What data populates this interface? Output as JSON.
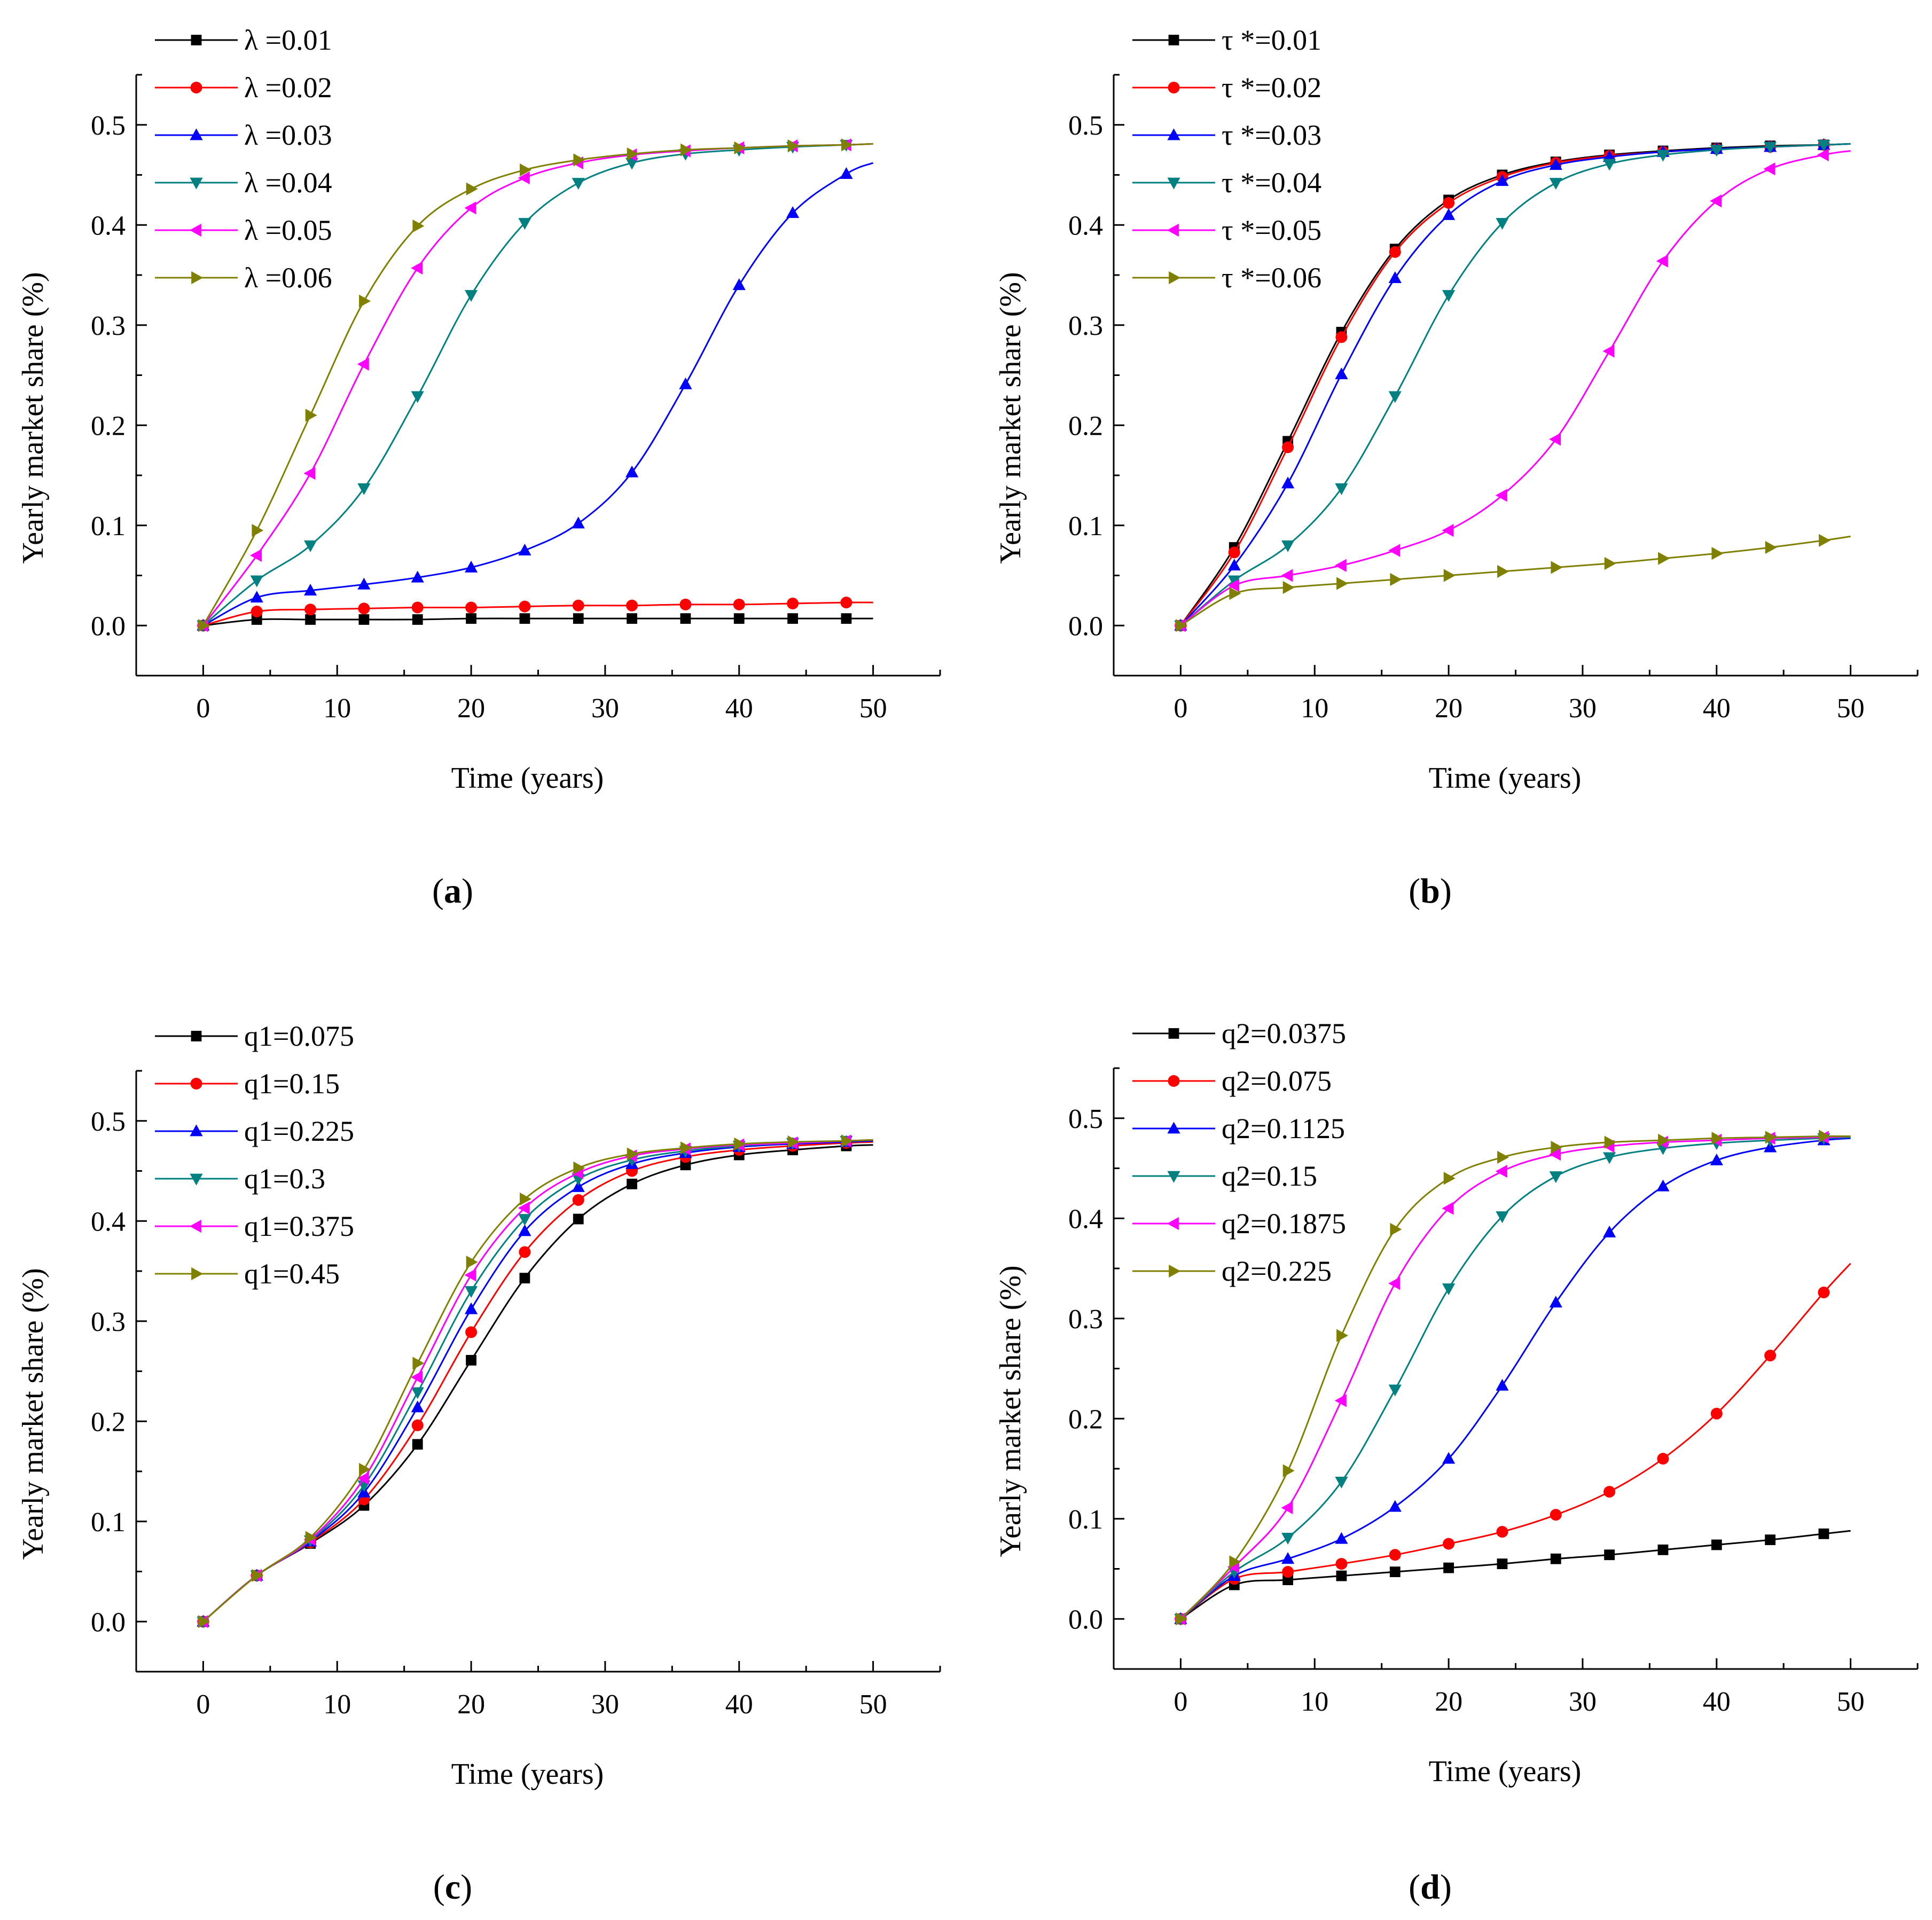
{
  "chart_data": [
    {
      "type": "line",
      "panel_label": "(a)",
      "xlabel": "Time (years)",
      "ylabel": "Yearly market share (%)",
      "xlim": [
        -5,
        55
      ],
      "ylim": [
        -0.05,
        0.55
      ],
      "xticks": [
        0,
        10,
        20,
        30,
        40,
        50
      ],
      "yticks": [
        0.0,
        0.1,
        0.2,
        0.3,
        0.4,
        0.5
      ],
      "xtick_labels": [
        "0",
        "10",
        "20",
        "30",
        "40",
        "50"
      ],
      "ytick_labels": [
        "0.0",
        "0.1",
        "0.2",
        "0.3",
        "0.4",
        "0.5"
      ],
      "legend_position": "top-left",
      "x": [
        0,
        4,
        8,
        12,
        16,
        20,
        24,
        28,
        32,
        36,
        40,
        44,
        48,
        50
      ],
      "series": [
        {
          "name": "λ =0.01",
          "color": "#000000",
          "marker": "square",
          "values": [
            0,
            0.006,
            0.006,
            0.006,
            0.006,
            0.007,
            0.007,
            0.007,
            0.007,
            0.007,
            0.007,
            0.007,
            0.007,
            0.007
          ]
        },
        {
          "name": "λ =0.02",
          "color": "#ff0000",
          "marker": "circle",
          "values": [
            0,
            0.014,
            0.016,
            0.017,
            0.018,
            0.018,
            0.019,
            0.02,
            0.02,
            0.021,
            0.021,
            0.022,
            0.023,
            0.023
          ]
        },
        {
          "name": "λ =0.03",
          "color": "#0000ff",
          "marker": "triangle-up",
          "values": [
            0,
            0.028,
            0.035,
            0.041,
            0.048,
            0.058,
            0.075,
            0.102,
            0.153,
            0.241,
            0.34,
            0.412,
            0.451,
            0.462
          ]
        },
        {
          "name": "λ =0.04",
          "color": "#008080",
          "marker": "triangle-down",
          "values": [
            0,
            0.045,
            0.08,
            0.137,
            0.229,
            0.33,
            0.402,
            0.442,
            0.462,
            0.471,
            0.475,
            0.478,
            0.48,
            0.481
          ]
        },
        {
          "name": "λ =0.05",
          "color": "#ff00ff",
          "marker": "triangle-left",
          "values": [
            0,
            0.07,
            0.152,
            0.261,
            0.357,
            0.417,
            0.447,
            0.462,
            0.47,
            0.474,
            0.477,
            0.479,
            0.48,
            0.481
          ]
        },
        {
          "name": "λ =0.06",
          "color": "#808000",
          "marker": "triangle-right",
          "values": [
            0,
            0.095,
            0.21,
            0.324,
            0.399,
            0.436,
            0.455,
            0.465,
            0.471,
            0.475,
            0.477,
            0.479,
            0.48,
            0.481
          ]
        }
      ]
    },
    {
      "type": "line",
      "panel_label": "(b)",
      "xlabel": "Time (years)",
      "ylabel": "Yearly market share (%)",
      "xlim": [
        -5,
        55
      ],
      "ylim": [
        -0.05,
        0.55
      ],
      "xticks": [
        0,
        10,
        20,
        30,
        40,
        50
      ],
      "yticks": [
        0.0,
        0.1,
        0.2,
        0.3,
        0.4,
        0.5
      ],
      "xtick_labels": [
        "0",
        "10",
        "20",
        "30",
        "40",
        "50"
      ],
      "ytick_labels": [
        "0.0",
        "0.1",
        "0.2",
        "0.3",
        "0.4",
        "0.5"
      ],
      "legend_position": "top-left",
      "x": [
        0,
        4,
        8,
        12,
        16,
        20,
        24,
        28,
        32,
        36,
        40,
        44,
        48,
        50
      ],
      "series": [
        {
          "name": "τ *=0.01",
          "color": "#000000",
          "marker": "square",
          "values": [
            0,
            0.078,
            0.184,
            0.293,
            0.376,
            0.425,
            0.45,
            0.463,
            0.47,
            0.474,
            0.477,
            0.479,
            0.48,
            0.481
          ]
        },
        {
          "name": "τ *=0.02",
          "color": "#ff0000",
          "marker": "circle",
          "values": [
            0,
            0.073,
            0.178,
            0.288,
            0.373,
            0.422,
            0.448,
            0.462,
            0.469,
            0.473,
            0.476,
            0.478,
            0.48,
            0.481
          ]
        },
        {
          "name": "τ *=0.03",
          "color": "#0000ff",
          "marker": "triangle-up",
          "values": [
            0,
            0.06,
            0.142,
            0.251,
            0.347,
            0.41,
            0.444,
            0.46,
            0.468,
            0.473,
            0.476,
            0.478,
            0.48,
            0.481
          ]
        },
        {
          "name": "τ *=0.04",
          "color": "#008080",
          "marker": "triangle-down",
          "values": [
            0,
            0.045,
            0.08,
            0.137,
            0.229,
            0.33,
            0.402,
            0.442,
            0.461,
            0.47,
            0.475,
            0.478,
            0.48,
            0.481
          ]
        },
        {
          "name": "τ *=0.05",
          "color": "#ff00ff",
          "marker": "triangle-left",
          "values": [
            0,
            0.04,
            0.05,
            0.06,
            0.075,
            0.095,
            0.13,
            0.186,
            0.274,
            0.364,
            0.424,
            0.456,
            0.47,
            0.474
          ]
        },
        {
          "name": "τ *=0.06",
          "color": "#808000",
          "marker": "triangle-right",
          "values": [
            0,
            0.032,
            0.038,
            0.042,
            0.046,
            0.05,
            0.054,
            0.058,
            0.062,
            0.067,
            0.072,
            0.078,
            0.085,
            0.089
          ]
        }
      ]
    },
    {
      "type": "line",
      "panel_label": "(c)",
      "xlabel": "Time (years)",
      "ylabel": "Yearly market share (%)",
      "xlim": [
        -5,
        55
      ],
      "ylim": [
        -0.05,
        0.55
      ],
      "xticks": [
        0,
        10,
        20,
        30,
        40,
        50
      ],
      "yticks": [
        0.0,
        0.1,
        0.2,
        0.3,
        0.4,
        0.5
      ],
      "xtick_labels": [
        "0",
        "10",
        "20",
        "30",
        "40",
        "50"
      ],
      "ytick_labels": [
        "0.0",
        "0.1",
        "0.2",
        "0.3",
        "0.4",
        "0.5"
      ],
      "legend_position": "top-left",
      "x": [
        0,
        4,
        8,
        12,
        16,
        20,
        24,
        28,
        32,
        36,
        40,
        44,
        48,
        50
      ],
      "series": [
        {
          "name": "q1=0.075",
          "color": "#000000",
          "marker": "square",
          "values": [
            0,
            0.046,
            0.078,
            0.116,
            0.177,
            0.261,
            0.343,
            0.402,
            0.437,
            0.456,
            0.466,
            0.471,
            0.475,
            0.476
          ]
        },
        {
          "name": "q1=0.15",
          "color": "#ff0000",
          "marker": "circle",
          "values": [
            0,
            0.046,
            0.079,
            0.122,
            0.196,
            0.289,
            0.369,
            0.421,
            0.45,
            0.464,
            0.471,
            0.475,
            0.478,
            0.479
          ]
        },
        {
          "name": "q1=0.225",
          "color": "#0000ff",
          "marker": "triangle-up",
          "values": [
            0,
            0.046,
            0.08,
            0.129,
            0.214,
            0.312,
            0.39,
            0.434,
            0.457,
            0.468,
            0.474,
            0.477,
            0.479,
            0.48
          ]
        },
        {
          "name": "q1=0.3",
          "color": "#008080",
          "marker": "triangle-down",
          "values": [
            0,
            0.046,
            0.081,
            0.136,
            0.229,
            0.33,
            0.402,
            0.442,
            0.461,
            0.47,
            0.475,
            0.478,
            0.48,
            0.481
          ]
        },
        {
          "name": "q1=0.375",
          "color": "#ff00ff",
          "marker": "triangle-left",
          "values": [
            0,
            0.046,
            0.082,
            0.143,
            0.244,
            0.346,
            0.413,
            0.448,
            0.465,
            0.472,
            0.476,
            0.478,
            0.48,
            0.481
          ]
        },
        {
          "name": "q1=0.45",
          "color": "#808000",
          "marker": "triangle-right",
          "values": [
            0,
            0.046,
            0.084,
            0.152,
            0.258,
            0.359,
            0.422,
            0.453,
            0.467,
            0.473,
            0.477,
            0.479,
            0.48,
            0.481
          ]
        }
      ]
    },
    {
      "type": "line",
      "panel_label": "(d)",
      "xlabel": "Time (years)",
      "ylabel": "Yearly market share (%)",
      "xlim": [
        -5,
        55
      ],
      "ylim": [
        -0.05,
        0.55
      ],
      "xticks": [
        0,
        10,
        20,
        30,
        40,
        50
      ],
      "yticks": [
        0.0,
        0.1,
        0.2,
        0.3,
        0.4,
        0.5
      ],
      "xtick_labels": [
        "0",
        "10",
        "20",
        "30",
        "40",
        "50"
      ],
      "ytick_labels": [
        "0.0",
        "0.1",
        "0.2",
        "0.3",
        "0.4",
        "0.5"
      ],
      "legend_position": "top-left",
      "x": [
        0,
        4,
        8,
        12,
        16,
        20,
        24,
        28,
        32,
        36,
        40,
        44,
        48,
        50
      ],
      "series": [
        {
          "name": "q2=0.0375",
          "color": "#000000",
          "marker": "square",
          "values": [
            0,
            0.034,
            0.039,
            0.043,
            0.047,
            0.051,
            0.055,
            0.06,
            0.064,
            0.069,
            0.074,
            0.079,
            0.085,
            0.088
          ]
        },
        {
          "name": "q2=0.075",
          "color": "#ff0000",
          "marker": "circle",
          "values": [
            0,
            0.04,
            0.047,
            0.055,
            0.064,
            0.075,
            0.087,
            0.104,
            0.127,
            0.16,
            0.205,
            0.263,
            0.326,
            0.355
          ]
        },
        {
          "name": "q2=0.1125",
          "color": "#0000ff",
          "marker": "triangle-up",
          "values": [
            0,
            0.043,
            0.06,
            0.08,
            0.112,
            0.16,
            0.233,
            0.316,
            0.386,
            0.432,
            0.458,
            0.471,
            0.478,
            0.48
          ]
        },
        {
          "name": "q2=0.15",
          "color": "#008080",
          "marker": "triangle-down",
          "values": [
            0,
            0.047,
            0.081,
            0.137,
            0.229,
            0.33,
            0.402,
            0.442,
            0.461,
            0.47,
            0.475,
            0.478,
            0.48,
            0.481
          ]
        },
        {
          "name": "q2=0.1875",
          "color": "#ff00ff",
          "marker": "triangle-left",
          "values": [
            0,
            0.052,
            0.111,
            0.218,
            0.335,
            0.41,
            0.447,
            0.464,
            0.472,
            0.476,
            0.478,
            0.48,
            0.481,
            0.482
          ]
        },
        {
          "name": "q2=0.225",
          "color": "#808000",
          "marker": "triangle-right",
          "values": [
            0,
            0.057,
            0.148,
            0.283,
            0.389,
            0.44,
            0.461,
            0.471,
            0.476,
            0.478,
            0.48,
            0.481,
            0.482,
            0.482
          ]
        }
      ]
    }
  ]
}
